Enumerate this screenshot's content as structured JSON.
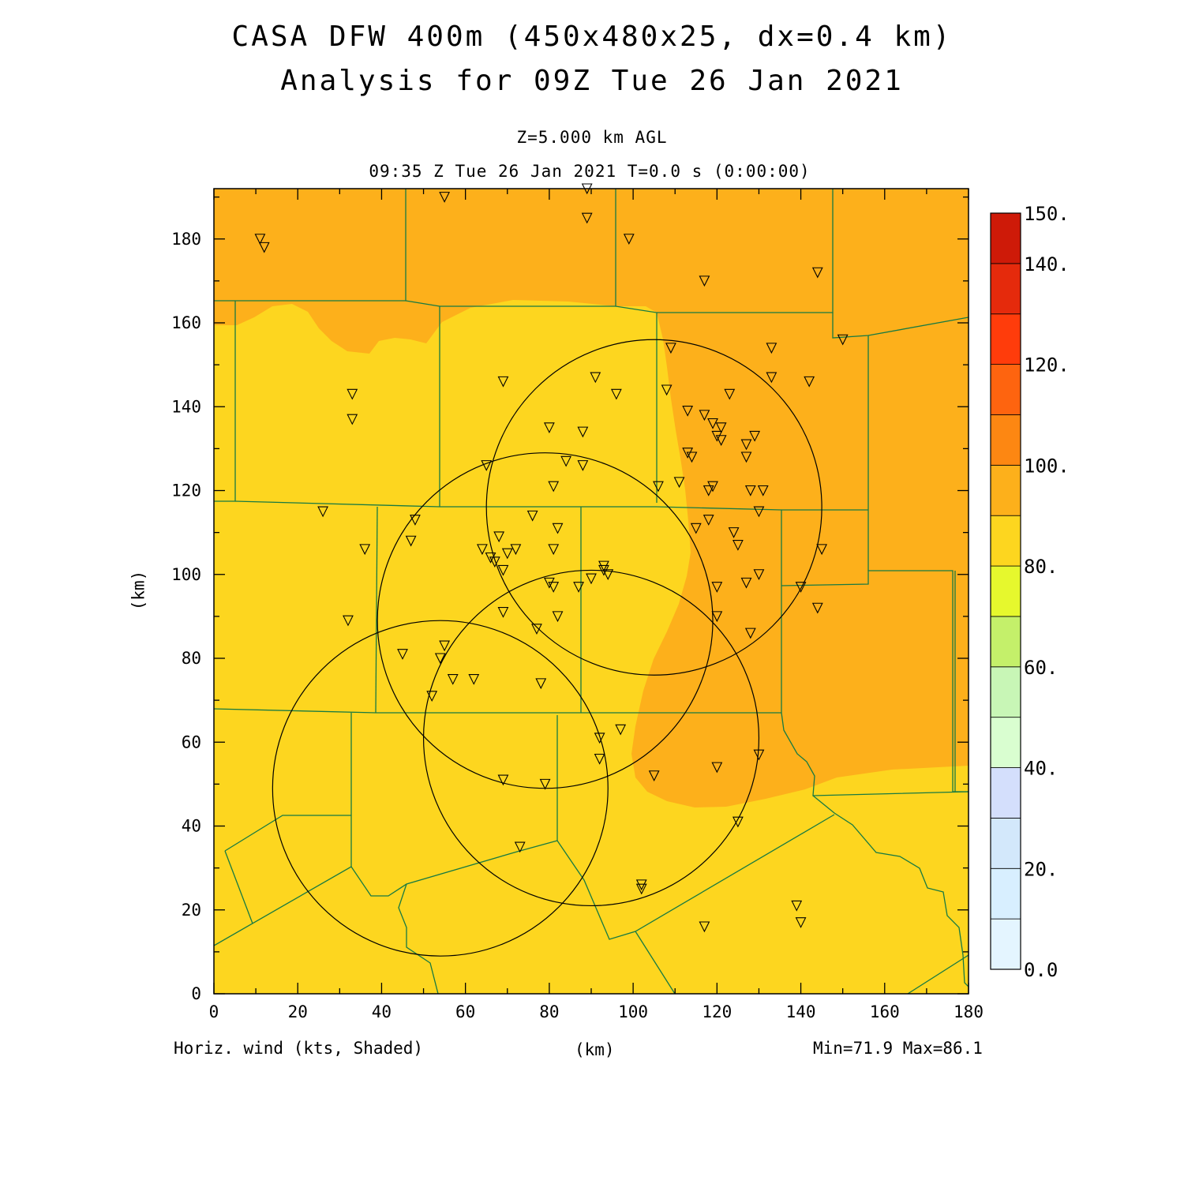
{
  "title_line1": "CASA DFW 400m (450x480x25, dx=0.4 km)",
  "title_line2": "Analysis for 09Z Tue 26 Jan 2021",
  "level_label": "Z=5.000 km AGL",
  "time_label": "09:35 Z Tue 26 Jan 2021   T=0.0 s (0:00:00)",
  "field_label": "Horiz. wind (kts, Shaded)",
  "xlabel": "(km)",
  "ylabel": "(km)",
  "minmax_label": "Min=71.9 Max=86.1",
  "chart_data": {
    "type": "contour map",
    "xlim": [
      0,
      180
    ],
    "ylim": [
      0,
      192
    ],
    "xticks": [
      0,
      20,
      40,
      60,
      80,
      100,
      120,
      140,
      160,
      180
    ],
    "yticks": [
      0,
      20,
      40,
      60,
      80,
      100,
      120,
      140,
      160,
      180
    ],
    "field": "Horiz. wind (kts, Shaded)",
    "min": 71.9,
    "max": 86.1,
    "shaded_regions": [
      {
        "range": "70-80",
        "color": "#fdd61f",
        "area": "most of domain (west, center, south)"
      },
      {
        "range": "80-90",
        "color": "#fdb01b",
        "area": "north strip and east"
      }
    ],
    "radar_range_rings": [
      {
        "center": [
          105,
          116
        ],
        "radius": 40
      },
      {
        "center": [
          79,
          89
        ],
        "radius": 40
      },
      {
        "center": [
          90,
          61
        ],
        "radius": 40
      },
      {
        "center": [
          54,
          49
        ],
        "radius": 40
      }
    ],
    "stations_marker": "triangle-down",
    "stations": [
      [
        11,
        180
      ],
      [
        12,
        178
      ],
      [
        55,
        190
      ],
      [
        89,
        192
      ],
      [
        89,
        185
      ],
      [
        99,
        180
      ],
      [
        117,
        170
      ],
      [
        144,
        172
      ],
      [
        150,
        156
      ],
      [
        33,
        143
      ],
      [
        33,
        137
      ],
      [
        69,
        146
      ],
      [
        91,
        147
      ],
      [
        96,
        143
      ],
      [
        109,
        154
      ],
      [
        133,
        154
      ],
      [
        133,
        147
      ],
      [
        142,
        146
      ],
      [
        108,
        144
      ],
      [
        113,
        139
      ],
      [
        117,
        138
      ],
      [
        119,
        136
      ],
      [
        121,
        135
      ],
      [
        123,
        143
      ],
      [
        120,
        133
      ],
      [
        121,
        132
      ],
      [
        127,
        131
      ],
      [
        129,
        133
      ],
      [
        127,
        128
      ],
      [
        80,
        135
      ],
      [
        88,
        134
      ],
      [
        113,
        129
      ],
      [
        114,
        128
      ],
      [
        65,
        126
      ],
      [
        84,
        127
      ],
      [
        88,
        126
      ],
      [
        81,
        121
      ],
      [
        106,
        121
      ],
      [
        111,
        122
      ],
      [
        118,
        120
      ],
      [
        119,
        121
      ],
      [
        128,
        120
      ],
      [
        131,
        120
      ],
      [
        26,
        115
      ],
      [
        48,
        113
      ],
      [
        76,
        114
      ],
      [
        82,
        111
      ],
      [
        115,
        111
      ],
      [
        118,
        113
      ],
      [
        130,
        115
      ],
      [
        124,
        110
      ],
      [
        125,
        107
      ],
      [
        47,
        108
      ],
      [
        36,
        106
      ],
      [
        64,
        106
      ],
      [
        66,
        104
      ],
      [
        67,
        103
      ],
      [
        68,
        109
      ],
      [
        69,
        101
      ],
      [
        70,
        105
      ],
      [
        72,
        106
      ],
      [
        81,
        106
      ],
      [
        93,
        102
      ],
      [
        93,
        101
      ],
      [
        94,
        100
      ],
      [
        80,
        98
      ],
      [
        81,
        97
      ],
      [
        87,
        97
      ],
      [
        90,
        99
      ],
      [
        120,
        97
      ],
      [
        127,
        98
      ],
      [
        130,
        100
      ],
      [
        140,
        97
      ],
      [
        145,
        106
      ],
      [
        69,
        91
      ],
      [
        82,
        90
      ],
      [
        120,
        90
      ],
      [
        144,
        92
      ],
      [
        32,
        89
      ],
      [
        77,
        87
      ],
      [
        45,
        81
      ],
      [
        54,
        80
      ],
      [
        55,
        83
      ],
      [
        57,
        75
      ],
      [
        62,
        75
      ],
      [
        78,
        74
      ],
      [
        52,
        71
      ],
      [
        97,
        63
      ],
      [
        92,
        61
      ],
      [
        92,
        56
      ],
      [
        120,
        54
      ],
      [
        130,
        57
      ],
      [
        105,
        52
      ],
      [
        69,
        51
      ],
      [
        79,
        50
      ],
      [
        128,
        86
      ],
      [
        125,
        41
      ],
      [
        73,
        35
      ],
      [
        102,
        26
      ],
      [
        102,
        25
      ],
      [
        139,
        21
      ],
      [
        140,
        17
      ],
      [
        117,
        16
      ]
    ],
    "colorbar": {
      "levels": [
        0,
        10,
        20,
        30,
        40,
        50,
        60,
        70,
        80,
        90,
        100,
        110,
        120,
        130,
        140,
        150
      ],
      "labels": [
        "0.0",
        "20.",
        "40.",
        "60.",
        "80.",
        "100.",
        "120.",
        "140.",
        "150."
      ],
      "colors": [
        "#e4f5ff",
        "#d8efff",
        "#d3e8fb",
        "#d4dffc",
        "#d9fed0",
        "#c8f6b6",
        "#c4f06a",
        "#e6f82d",
        "#fdd61f",
        "#fdb01b",
        "#fd8712",
        "#fe640f",
        "#ff3c0b",
        "#e52a0c",
        "#ce1a08",
        "#ad0103"
      ]
    }
  }
}
